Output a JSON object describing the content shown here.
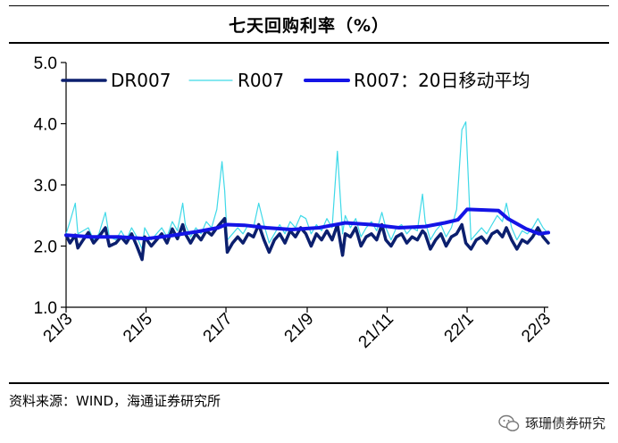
{
  "title": "七天回购利率（%）",
  "source": "资料来源：WIND，海通证券研究所",
  "watermark": "琢珊债券研究",
  "colors": {
    "dr007": "#0b1f6e",
    "r007": "#3fd9e8",
    "ma20": "#1414e6"
  },
  "chart_data": {
    "type": "line",
    "title": "七天回购利率（%）",
    "ylim": [
      1.0,
      5.0
    ],
    "yticks": [
      "5.0",
      "4.0",
      "3.0",
      "2.0",
      "1.0"
    ],
    "yticks_values": [
      5.0,
      4.0,
      3.0,
      2.0,
      1.0
    ],
    "x_range": [
      "2021-03-01",
      "2022-03-04"
    ],
    "xticks": [
      {
        "label": "21/3",
        "date": "2021-03-01"
      },
      {
        "label": "21/5",
        "date": "2021-05-01"
      },
      {
        "label": "21/7",
        "date": "2021-07-01"
      },
      {
        "label": "21/9",
        "date": "2021-09-01"
      },
      {
        "label": "21/11",
        "date": "2021-11-01"
      },
      {
        "label": "22/1",
        "date": "2022-01-01"
      },
      {
        "label": "22/3",
        "date": "2022-03-01"
      }
    ],
    "legend_position": "top",
    "grid": false,
    "series": [
      {
        "name": "DR007",
        "points": [
          [
            "2021-03-01",
            2.18
          ],
          [
            "2021-03-04",
            2.05
          ],
          [
            "2021-03-08",
            2.18
          ],
          [
            "2021-03-10",
            1.97
          ],
          [
            "2021-03-14",
            2.1
          ],
          [
            "2021-03-18",
            2.22
          ],
          [
            "2021-03-22",
            2.05
          ],
          [
            "2021-03-26",
            2.15
          ],
          [
            "2021-03-31",
            2.3
          ],
          [
            "2021-04-03",
            2.0
          ],
          [
            "2021-04-08",
            2.05
          ],
          [
            "2021-04-12",
            2.15
          ],
          [
            "2021-04-16",
            2.05
          ],
          [
            "2021-04-20",
            2.2
          ],
          [
            "2021-04-24",
            2.0
          ],
          [
            "2021-04-28",
            1.78
          ],
          [
            "2021-04-30",
            2.15
          ],
          [
            "2021-05-05",
            2.0
          ],
          [
            "2021-05-09",
            2.1
          ],
          [
            "2021-05-13",
            2.2
          ],
          [
            "2021-05-17",
            2.05
          ],
          [
            "2021-05-21",
            2.28
          ],
          [
            "2021-05-25",
            2.12
          ],
          [
            "2021-05-29",
            2.35
          ],
          [
            "2021-05-31",
            2.2
          ],
          [
            "2021-06-04",
            2.05
          ],
          [
            "2021-06-08",
            2.2
          ],
          [
            "2021-06-12",
            2.1
          ],
          [
            "2021-06-16",
            2.25
          ],
          [
            "2021-06-20",
            2.18
          ],
          [
            "2021-06-24",
            2.3
          ],
          [
            "2021-06-28",
            2.4
          ],
          [
            "2021-06-30",
            2.45
          ],
          [
            "2021-07-02",
            1.9
          ],
          [
            "2021-07-06",
            2.05
          ],
          [
            "2021-07-10",
            2.15
          ],
          [
            "2021-07-14",
            2.05
          ],
          [
            "2021-07-18",
            2.2
          ],
          [
            "2021-07-22",
            2.15
          ],
          [
            "2021-07-26",
            2.35
          ],
          [
            "2021-07-30",
            2.1
          ],
          [
            "2021-08-03",
            1.9
          ],
          [
            "2021-08-07",
            2.1
          ],
          [
            "2021-08-11",
            2.2
          ],
          [
            "2021-08-15",
            2.05
          ],
          [
            "2021-08-19",
            2.25
          ],
          [
            "2021-08-23",
            2.15
          ],
          [
            "2021-08-27",
            2.3
          ],
          [
            "2021-08-31",
            2.2
          ],
          [
            "2021-09-04",
            2.0
          ],
          [
            "2021-09-08",
            2.2
          ],
          [
            "2021-09-12",
            2.1
          ],
          [
            "2021-09-16",
            2.25
          ],
          [
            "2021-09-20",
            2.1
          ],
          [
            "2021-09-24",
            2.35
          ],
          [
            "2021-09-28",
            1.85
          ],
          [
            "2021-09-30",
            2.2
          ],
          [
            "2021-10-04",
            2.15
          ],
          [
            "2021-10-08",
            2.3
          ],
          [
            "2021-10-12",
            2.0
          ],
          [
            "2021-10-16",
            2.15
          ],
          [
            "2021-10-20",
            2.2
          ],
          [
            "2021-10-24",
            2.1
          ],
          [
            "2021-10-28",
            2.35
          ],
          [
            "2021-10-31",
            2.1
          ],
          [
            "2021-11-04",
            2.0
          ],
          [
            "2021-11-08",
            2.15
          ],
          [
            "2021-11-12",
            2.2
          ],
          [
            "2021-11-16",
            2.05
          ],
          [
            "2021-11-20",
            2.15
          ],
          [
            "2021-11-24",
            2.1
          ],
          [
            "2021-11-28",
            2.25
          ],
          [
            "2021-11-30",
            2.2
          ],
          [
            "2021-12-04",
            1.95
          ],
          [
            "2021-12-08",
            2.1
          ],
          [
            "2021-12-12",
            2.2
          ],
          [
            "2021-12-16",
            2.0
          ],
          [
            "2021-12-20",
            2.15
          ],
          [
            "2021-12-24",
            2.2
          ],
          [
            "2021-12-28",
            2.35
          ],
          [
            "2021-12-31",
            2.05
          ],
          [
            "2022-01-04",
            1.95
          ],
          [
            "2022-01-08",
            2.1
          ],
          [
            "2022-01-12",
            2.15
          ],
          [
            "2022-01-16",
            2.05
          ],
          [
            "2022-01-20",
            2.2
          ],
          [
            "2022-01-24",
            2.25
          ],
          [
            "2022-01-28",
            2.15
          ],
          [
            "2022-01-31",
            2.3
          ],
          [
            "2022-02-04",
            2.1
          ],
          [
            "2022-02-08",
            1.95
          ],
          [
            "2022-02-12",
            2.1
          ],
          [
            "2022-02-16",
            2.05
          ],
          [
            "2022-02-20",
            2.15
          ],
          [
            "2022-02-24",
            2.3
          ],
          [
            "2022-02-28",
            2.15
          ],
          [
            "2022-03-04",
            2.05
          ]
        ]
      },
      {
        "name": "R007",
        "points": [
          [
            "2021-03-01",
            2.2
          ],
          [
            "2021-03-04",
            2.4
          ],
          [
            "2021-03-08",
            2.7
          ],
          [
            "2021-03-10",
            2.2
          ],
          [
            "2021-03-14",
            2.25
          ],
          [
            "2021-03-18",
            2.3
          ],
          [
            "2021-03-22",
            2.1
          ],
          [
            "2021-03-26",
            2.2
          ],
          [
            "2021-03-31",
            2.55
          ],
          [
            "2021-04-03",
            2.15
          ],
          [
            "2021-04-08",
            2.1
          ],
          [
            "2021-04-12",
            2.25
          ],
          [
            "2021-04-16",
            2.1
          ],
          [
            "2021-04-20",
            2.3
          ],
          [
            "2021-04-24",
            2.15
          ],
          [
            "2021-04-28",
            1.95
          ],
          [
            "2021-04-30",
            2.3
          ],
          [
            "2021-05-05",
            2.1
          ],
          [
            "2021-05-09",
            2.2
          ],
          [
            "2021-05-13",
            2.3
          ],
          [
            "2021-05-17",
            2.15
          ],
          [
            "2021-05-21",
            2.4
          ],
          [
            "2021-05-25",
            2.25
          ],
          [
            "2021-05-29",
            2.7
          ],
          [
            "2021-05-31",
            2.35
          ],
          [
            "2021-06-04",
            2.15
          ],
          [
            "2021-06-08",
            2.3
          ],
          [
            "2021-06-12",
            2.2
          ],
          [
            "2021-06-16",
            2.4
          ],
          [
            "2021-06-20",
            2.3
          ],
          [
            "2021-06-24",
            2.6
          ],
          [
            "2021-06-28",
            3.38
          ],
          [
            "2021-06-30",
            2.9
          ],
          [
            "2021-07-02",
            2.1
          ],
          [
            "2021-07-06",
            2.2
          ],
          [
            "2021-07-10",
            2.3
          ],
          [
            "2021-07-14",
            2.2
          ],
          [
            "2021-07-18",
            2.35
          ],
          [
            "2021-07-22",
            2.3
          ],
          [
            "2021-07-26",
            2.7
          ],
          [
            "2021-07-30",
            2.35
          ],
          [
            "2021-08-03",
            2.05
          ],
          [
            "2021-08-07",
            2.2
          ],
          [
            "2021-08-11",
            2.35
          ],
          [
            "2021-08-15",
            2.2
          ],
          [
            "2021-08-19",
            2.4
          ],
          [
            "2021-08-23",
            2.3
          ],
          [
            "2021-08-27",
            2.5
          ],
          [
            "2021-08-31",
            2.45
          ],
          [
            "2021-09-04",
            2.2
          ],
          [
            "2021-09-08",
            2.35
          ],
          [
            "2021-09-12",
            2.25
          ],
          [
            "2021-09-16",
            2.45
          ],
          [
            "2021-09-20",
            2.3
          ],
          [
            "2021-09-24",
            3.55
          ],
          [
            "2021-09-28",
            2.2
          ],
          [
            "2021-09-30",
            2.5
          ],
          [
            "2021-10-04",
            2.3
          ],
          [
            "2021-10-08",
            2.45
          ],
          [
            "2021-10-12",
            2.15
          ],
          [
            "2021-10-16",
            2.3
          ],
          [
            "2021-10-20",
            2.4
          ],
          [
            "2021-10-24",
            2.25
          ],
          [
            "2021-10-28",
            2.55
          ],
          [
            "2021-10-31",
            2.3
          ],
          [
            "2021-11-04",
            2.1
          ],
          [
            "2021-11-08",
            2.3
          ],
          [
            "2021-11-12",
            2.35
          ],
          [
            "2021-11-16",
            2.2
          ],
          [
            "2021-11-20",
            2.3
          ],
          [
            "2021-11-24",
            2.25
          ],
          [
            "2021-11-28",
            2.85
          ],
          [
            "2021-11-30",
            2.4
          ],
          [
            "2021-12-04",
            2.1
          ],
          [
            "2021-12-08",
            2.25
          ],
          [
            "2021-12-12",
            2.35
          ],
          [
            "2021-12-16",
            2.15
          ],
          [
            "2021-12-20",
            2.3
          ],
          [
            "2021-12-24",
            2.6
          ],
          [
            "2021-12-28",
            3.9
          ],
          [
            "2021-12-31",
            4.03
          ],
          [
            "2022-01-04",
            2.1
          ],
          [
            "2022-01-08",
            2.2
          ],
          [
            "2022-01-12",
            2.3
          ],
          [
            "2022-01-16",
            2.2
          ],
          [
            "2022-01-20",
            2.35
          ],
          [
            "2022-01-24",
            2.5
          ],
          [
            "2022-01-28",
            2.4
          ],
          [
            "2022-01-31",
            2.7
          ],
          [
            "2022-02-04",
            2.3
          ],
          [
            "2022-02-08",
            2.1
          ],
          [
            "2022-02-12",
            2.25
          ],
          [
            "2022-02-16",
            2.2
          ],
          [
            "2022-02-20",
            2.3
          ],
          [
            "2022-02-24",
            2.45
          ],
          [
            "2022-02-28",
            2.3
          ],
          [
            "2022-03-04",
            2.2
          ]
        ]
      },
      {
        "name": "R007：20日移动平均",
        "points": [
          [
            "2021-03-01",
            2.18
          ],
          [
            "2021-03-20",
            2.15
          ],
          [
            "2021-04-10",
            2.15
          ],
          [
            "2021-05-01",
            2.12
          ],
          [
            "2021-05-20",
            2.17
          ],
          [
            "2021-06-10",
            2.24
          ],
          [
            "2021-06-25",
            2.3
          ],
          [
            "2021-07-01",
            2.35
          ],
          [
            "2021-07-15",
            2.34
          ],
          [
            "2021-08-01",
            2.3
          ],
          [
            "2021-08-20",
            2.27
          ],
          [
            "2021-09-10",
            2.3
          ],
          [
            "2021-09-30",
            2.38
          ],
          [
            "2021-10-20",
            2.35
          ],
          [
            "2021-11-10",
            2.3
          ],
          [
            "2021-11-30",
            2.32
          ],
          [
            "2021-12-15",
            2.38
          ],
          [
            "2021-12-25",
            2.43
          ],
          [
            "2022-01-01",
            2.6
          ],
          [
            "2022-01-25",
            2.58
          ],
          [
            "2022-02-01",
            2.45
          ],
          [
            "2022-02-15",
            2.28
          ],
          [
            "2022-02-25",
            2.2
          ],
          [
            "2022-03-04",
            2.22
          ]
        ]
      }
    ]
  }
}
